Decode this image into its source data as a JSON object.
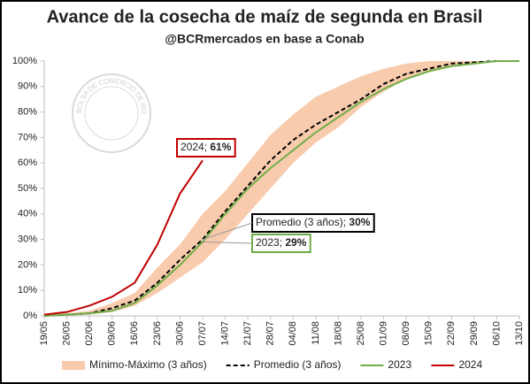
{
  "chart_data": {
    "type": "line",
    "title": "Avance de la cosecha de maíz de segunda en Brasil",
    "subtitle": "@BCRmercados en base a Conab",
    "watermark": "BOLSA DE COMERCIO DE ROSARIO",
    "categories": [
      "19/05",
      "26/05",
      "02/06",
      "09/06",
      "16/06",
      "23/06",
      "30/06",
      "07/07",
      "14/07",
      "21/07",
      "28/07",
      "04/08",
      "11/08",
      "18/08",
      "25/08",
      "01/09",
      "08/09",
      "15/09",
      "22/09",
      "29/09",
      "06/10",
      "13/10"
    ],
    "ylim": [
      0,
      100
    ],
    "yticks": [
      {
        "value": 0,
        "label": "0%"
      },
      {
        "value": 10,
        "label": "10%"
      },
      {
        "value": 20,
        "label": "20%"
      },
      {
        "value": 30,
        "label": "30%"
      },
      {
        "value": 40,
        "label": "40%"
      },
      {
        "value": 50,
        "label": "50%"
      },
      {
        "value": 60,
        "label": "60%"
      },
      {
        "value": 70,
        "label": "70%"
      },
      {
        "value": 80,
        "label": "80%"
      },
      {
        "value": 90,
        "label": "90%"
      },
      {
        "value": 100,
        "label": "100%"
      }
    ],
    "grid": false,
    "legend": "bottom",
    "band": {
      "name": "Mínimo-Máximo (3 años)",
      "color": "#f8cbad",
      "low": [
        0,
        0,
        0.5,
        1.5,
        4,
        9,
        15,
        21,
        30,
        40,
        50,
        60,
        68,
        74,
        82,
        88,
        93,
        96,
        98,
        99,
        100,
        100
      ],
      "high": [
        0.5,
        1,
        2,
        5,
        9,
        19,
        28,
        40,
        49,
        60,
        71,
        79,
        86,
        90,
        94,
        97,
        99,
        100,
        100,
        100,
        100,
        100
      ]
    },
    "series": [
      {
        "name": "Promedio (3 años)",
        "color": "#000000",
        "dash": true,
        "values": [
          0,
          0.5,
          1,
          3,
          6,
          13,
          22,
          30,
          41,
          51,
          61,
          69,
          75,
          80,
          85,
          91,
          95,
          97,
          99,
          99.5,
          100,
          100
        ],
        "value_labels": [
          null,
          null,
          null,
          null,
          null,
          null,
          null,
          "30%",
          null,
          null,
          null,
          null,
          null,
          null,
          null,
          null,
          null,
          null,
          null,
          null,
          null,
          null
        ]
      },
      {
        "name": "2023",
        "color": "#70ad47",
        "values": [
          0,
          0.5,
          1,
          2,
          5,
          12,
          20,
          29,
          40,
          50,
          58,
          65,
          72,
          78,
          84,
          89,
          93,
          96,
          98,
          99,
          100,
          100
        ],
        "value_labels": [
          null,
          null,
          null,
          null,
          null,
          null,
          null,
          "29%",
          null,
          null,
          null,
          null,
          null,
          null,
          null,
          null,
          null,
          null,
          null,
          null,
          null,
          null
        ]
      },
      {
        "name": "2024",
        "color": "#c00000",
        "values": [
          0.5,
          1.5,
          4,
          7.5,
          13,
          28,
          48,
          61,
          null,
          null,
          null,
          null,
          null,
          null,
          null,
          null,
          null,
          null,
          null,
          null,
          null,
          null
        ],
        "value_labels": [
          null,
          null,
          null,
          null,
          null,
          null,
          null,
          "61%",
          null,
          null,
          null,
          null,
          null,
          null,
          null,
          null,
          null,
          null,
          null,
          null,
          null,
          null
        ]
      }
    ]
  }
}
